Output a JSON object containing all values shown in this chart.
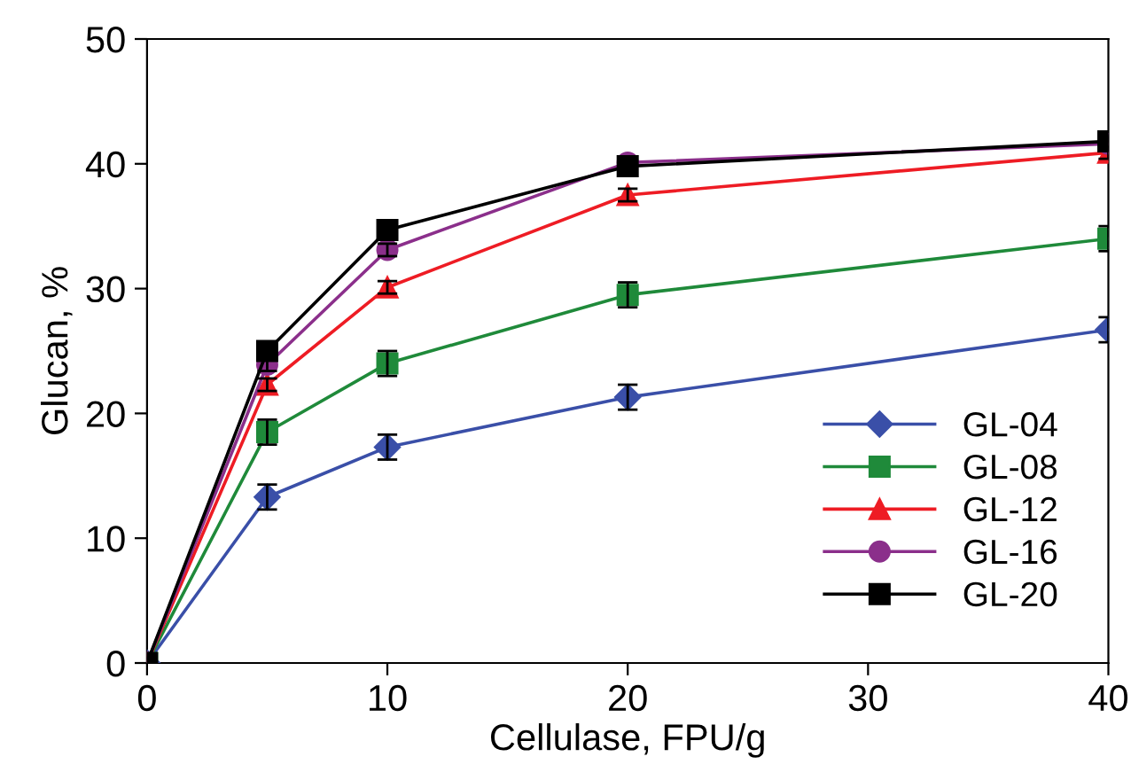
{
  "chart_data": {
    "type": "line",
    "xlabel": "Cellulase, FPU/g",
    "ylabel": "Glucan, %",
    "x": [
      0,
      5,
      10,
      20,
      40
    ],
    "xlim": [
      0,
      40
    ],
    "xticks": [
      0,
      10,
      20,
      30,
      40
    ],
    "ylim": [
      0,
      50
    ],
    "yticks": [
      0,
      10,
      20,
      30,
      40,
      50
    ],
    "grid": false,
    "legend": "bottom right",
    "series": [
      {
        "name": "GL-04",
        "color": "#3a4fa8",
        "marker": "diamond",
        "values": [
          0,
          13.3,
          17.3,
          21.3,
          26.7
        ],
        "errors": [
          null,
          1.0,
          1.0,
          1.0,
          1.0
        ]
      },
      {
        "name": "GL-08",
        "color": "#1f8a3a",
        "marker": "square",
        "values": [
          0,
          18.5,
          24.0,
          29.5,
          34.0
        ],
        "errors": [
          null,
          1.0,
          1.0,
          1.0,
          1.0
        ]
      },
      {
        "name": "GL-12",
        "color": "#ee1c24",
        "marker": "triangle",
        "values": [
          0,
          22.3,
          30.1,
          37.5,
          40.9
        ],
        "errors": [
          null,
          0.5,
          0.5,
          0.5,
          0.5
        ]
      },
      {
        "name": "GL-16",
        "color": "#8b2f8b",
        "marker": "circle",
        "values": [
          0,
          23.9,
          33.1,
          40.1,
          41.6
        ],
        "errors": [
          null,
          0.5,
          0.5,
          0.5,
          0.5
        ]
      },
      {
        "name": "GL-20",
        "color": "#000000",
        "marker": "square",
        "values": [
          0,
          25.0,
          34.7,
          39.8,
          41.8
        ],
        "errors": [
          null,
          0.5,
          0.5,
          0.5,
          0.5
        ]
      }
    ]
  }
}
